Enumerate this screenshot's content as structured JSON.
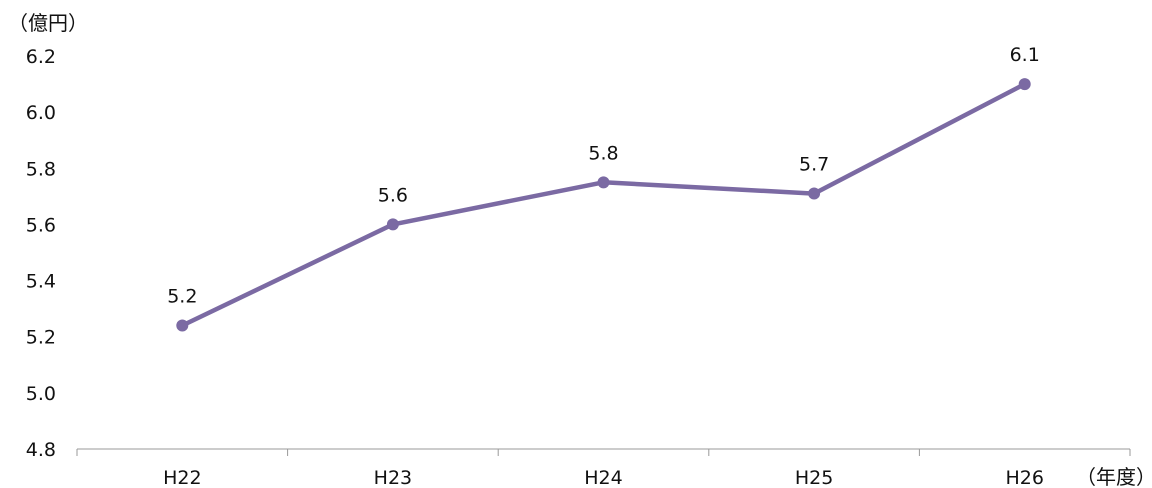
{
  "chart_data": {
    "type": "line",
    "y_unit_label": "（億円）",
    "x_unit_label": "（年度）",
    "categories": [
      "H22",
      "H23",
      "H24",
      "H25",
      "H26"
    ],
    "series": [
      {
        "values": [
          5.24,
          5.6,
          5.75,
          5.71,
          6.1
        ],
        "data_labels": [
          "5.2",
          "5.6",
          "5.8",
          "5.7",
          "6.1"
        ]
      }
    ],
    "yticks": [
      "4.8",
      "5.0",
      "5.2",
      "5.4",
      "5.6",
      "5.8",
      "6.0",
      "6.2"
    ],
    "ylim": [
      4.8,
      6.2
    ],
    "grid": false,
    "line_color": "#7b6aa3",
    "axis_color": "#999999"
  }
}
